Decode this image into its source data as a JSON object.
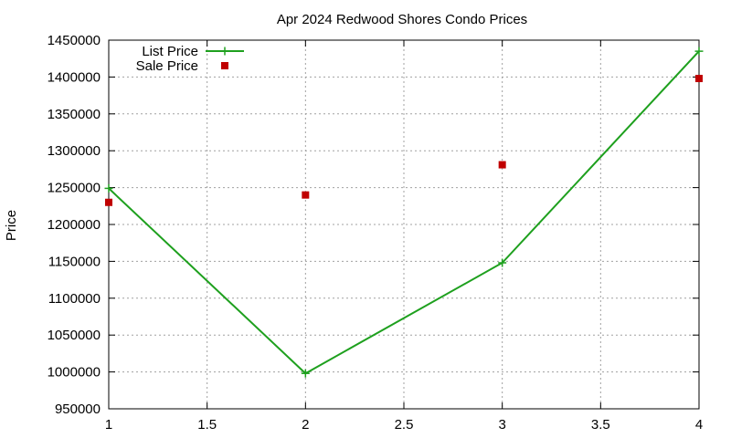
{
  "chart_data": {
    "type": "line",
    "title": "Apr 2024 Redwood Shores Condo Prices",
    "xlabel": "",
    "ylabel": "Price",
    "xlim": [
      1,
      4
    ],
    "ylim": [
      950000,
      1450000
    ],
    "x_ticks": [
      "1",
      "1.5",
      "2",
      "2.5",
      "3",
      "3.5",
      "4"
    ],
    "y_ticks": [
      "950000",
      "1000000",
      "1050000",
      "1100000",
      "1150000",
      "1200000",
      "1250000",
      "1300000",
      "1350000",
      "1400000",
      "1450000"
    ],
    "grid": true,
    "legend_position": "top-left",
    "series": [
      {
        "name": "List Price",
        "style": "line+cross",
        "color": "#1ea01e",
        "x": [
          1,
          2,
          3,
          4
        ],
        "y": [
          1249000,
          998000,
          1148000,
          1435000
        ]
      },
      {
        "name": "Sale Price",
        "style": "square",
        "color": "#c00000",
        "x": [
          1,
          2,
          3,
          4
        ],
        "y": [
          1230000,
          1240000,
          1281000,
          1398000
        ]
      }
    ]
  }
}
